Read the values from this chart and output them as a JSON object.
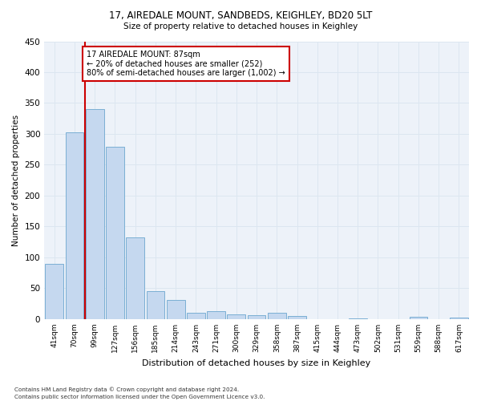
{
  "title1": "17, AIREDALE MOUNT, SANDBEDS, KEIGHLEY, BD20 5LT",
  "title2": "Size of property relative to detached houses in Keighley",
  "xlabel": "Distribution of detached houses by size in Keighley",
  "ylabel": "Number of detached properties",
  "footer1": "Contains HM Land Registry data © Crown copyright and database right 2024.",
  "footer2": "Contains public sector information licensed under the Open Government Licence v3.0.",
  "bar_color": "#c5d8ef",
  "bar_edge_color": "#7bafd4",
  "grid_color": "#dce6f0",
  "vline_color": "#cc0000",
  "annotation_box_color": "#cc0000",
  "categories": [
    "41sqm",
    "70sqm",
    "99sqm",
    "127sqm",
    "156sqm",
    "185sqm",
    "214sqm",
    "243sqm",
    "271sqm",
    "300sqm",
    "329sqm",
    "358sqm",
    "387sqm",
    "415sqm",
    "444sqm",
    "473sqm",
    "502sqm",
    "531sqm",
    "559sqm",
    "588sqm",
    "617sqm"
  ],
  "values": [
    90,
    303,
    340,
    279,
    133,
    46,
    31,
    10,
    13,
    8,
    6,
    10,
    5,
    0,
    0,
    1,
    0,
    0,
    4,
    0,
    3
  ],
  "vline_x": 1.5,
  "annotation_text": "17 AIREDALE MOUNT: 87sqm\n← 20% of detached houses are smaller (252)\n80% of semi-detached houses are larger (1,002) →",
  "ylim": [
    0,
    450
  ],
  "yticks": [
    0,
    50,
    100,
    150,
    200,
    250,
    300,
    350,
    400,
    450
  ],
  "background_color": "#edf2f9"
}
